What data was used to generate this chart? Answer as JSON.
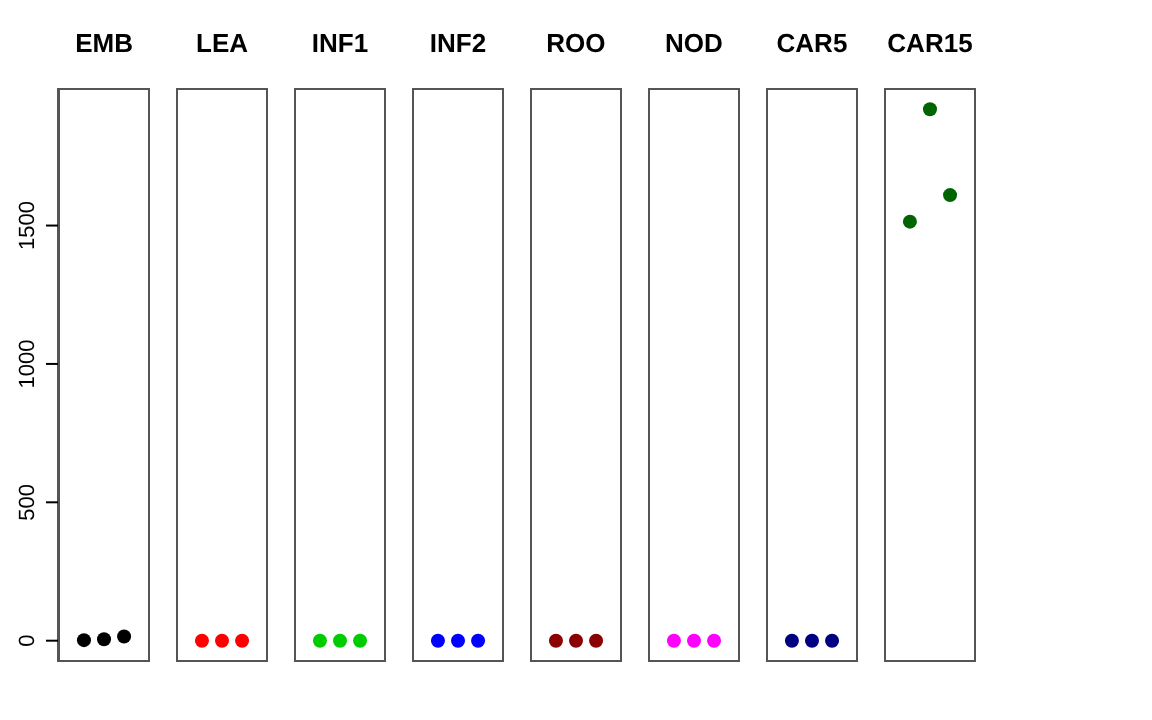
{
  "chart_data": {
    "type": "scatter",
    "categories": [
      "EMB",
      "LEA",
      "INF1",
      "INF2",
      "ROO",
      "NOD",
      "CAR5",
      "CAR15"
    ],
    "series": [
      {
        "values": [
          2,
          0,
          0,
          0,
          0,
          0,
          0,
          1514
        ],
        "colors": [
          "#000000",
          "#ff0000",
          "#00cd00",
          "#0000ff",
          "#8b0000",
          "#ff00ff",
          "#000080",
          "#006400"
        ]
      },
      {
        "values": [
          5,
          0,
          0,
          0,
          0,
          0,
          0,
          1920
        ],
        "colors": [
          "#000000",
          "#ff0000",
          "#00cd00",
          "#0000ff",
          "#8b0000",
          "#ff00ff",
          "#000080",
          "#006400"
        ]
      },
      {
        "values": [
          15,
          0,
          0,
          0,
          0,
          0,
          0,
          1610
        ],
        "colors": [
          "#000000",
          "#ff0000",
          "#00cd00",
          "#0000ff",
          "#8b0000",
          "#ff00ff",
          "#000080",
          "#006400"
        ]
      }
    ],
    "ylim": [
      -77,
      1997
    ],
    "yticks": [
      0,
      500,
      1000,
      1500
    ],
    "marker": "circle",
    "grid": false
  }
}
